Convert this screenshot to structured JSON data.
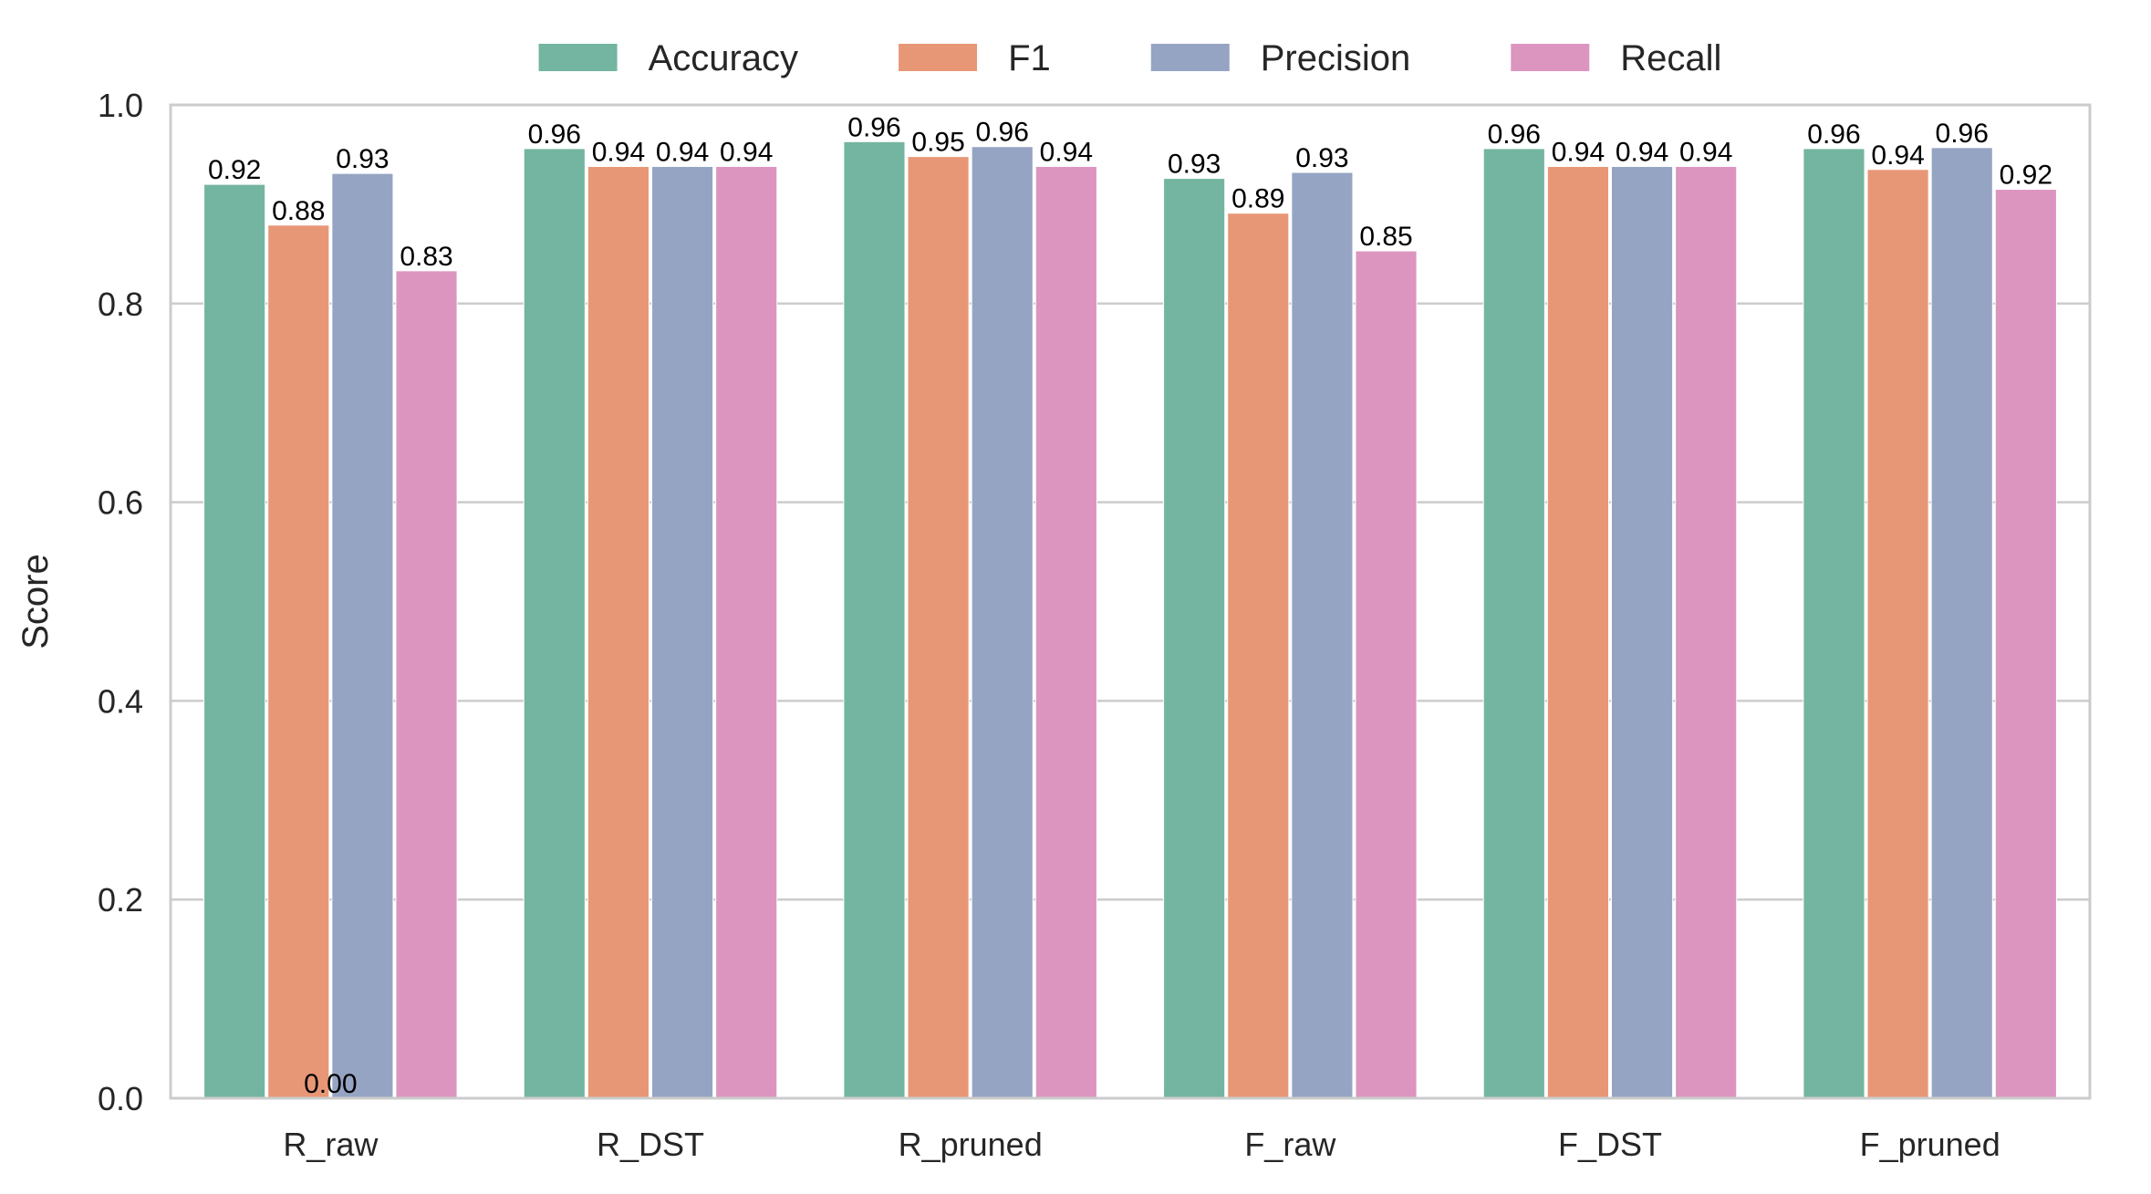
{
  "chart_data": {
    "type": "bar",
    "title": "",
    "xlabel": "",
    "ylabel": "Score",
    "ylim": [
      0,
      1.0
    ],
    "yticks": [
      "0.0",
      "0.2",
      "0.4",
      "0.6",
      "0.8",
      "1.0"
    ],
    "grid": true,
    "legend_position": "top-center",
    "categories": [
      "R_raw",
      "R_DST",
      "R_pruned",
      "F_raw",
      "F_DST",
      "F_pruned"
    ],
    "series": [
      {
        "name": "Accuracy",
        "color": "#73b5a0",
        "values": [
          0.92,
          0.956,
          0.963,
          0.926,
          0.956,
          0.956
        ],
        "labels": [
          "0.92",
          "0.96",
          "0.96",
          "0.93",
          "0.96",
          "0.96"
        ]
      },
      {
        "name": "F1",
        "color": "#e89776",
        "values": [
          0.879,
          0.938,
          0.948,
          0.891,
          0.938,
          0.935
        ],
        "labels": [
          "0.88",
          "0.94",
          "0.95",
          "0.89",
          "0.94",
          "0.94"
        ]
      },
      {
        "name": "Precision",
        "color": "#96a4c3",
        "values": [
          0.931,
          0.938,
          0.958,
          0.932,
          0.938,
          0.957
        ],
        "labels": [
          "0.93",
          "0.94",
          "0.96",
          "0.93",
          "0.94",
          "0.96"
        ]
      },
      {
        "name": "Recall",
        "color": "#dc95bf",
        "values": [
          0.833,
          0.938,
          0.938,
          0.853,
          0.938,
          0.915
        ],
        "labels": [
          "0.83",
          "0.94",
          "0.94",
          "0.85",
          "0.94",
          "0.92"
        ]
      }
    ],
    "extra_annotation": {
      "text": "0.00",
      "category": "R_raw",
      "value": 0
    }
  }
}
